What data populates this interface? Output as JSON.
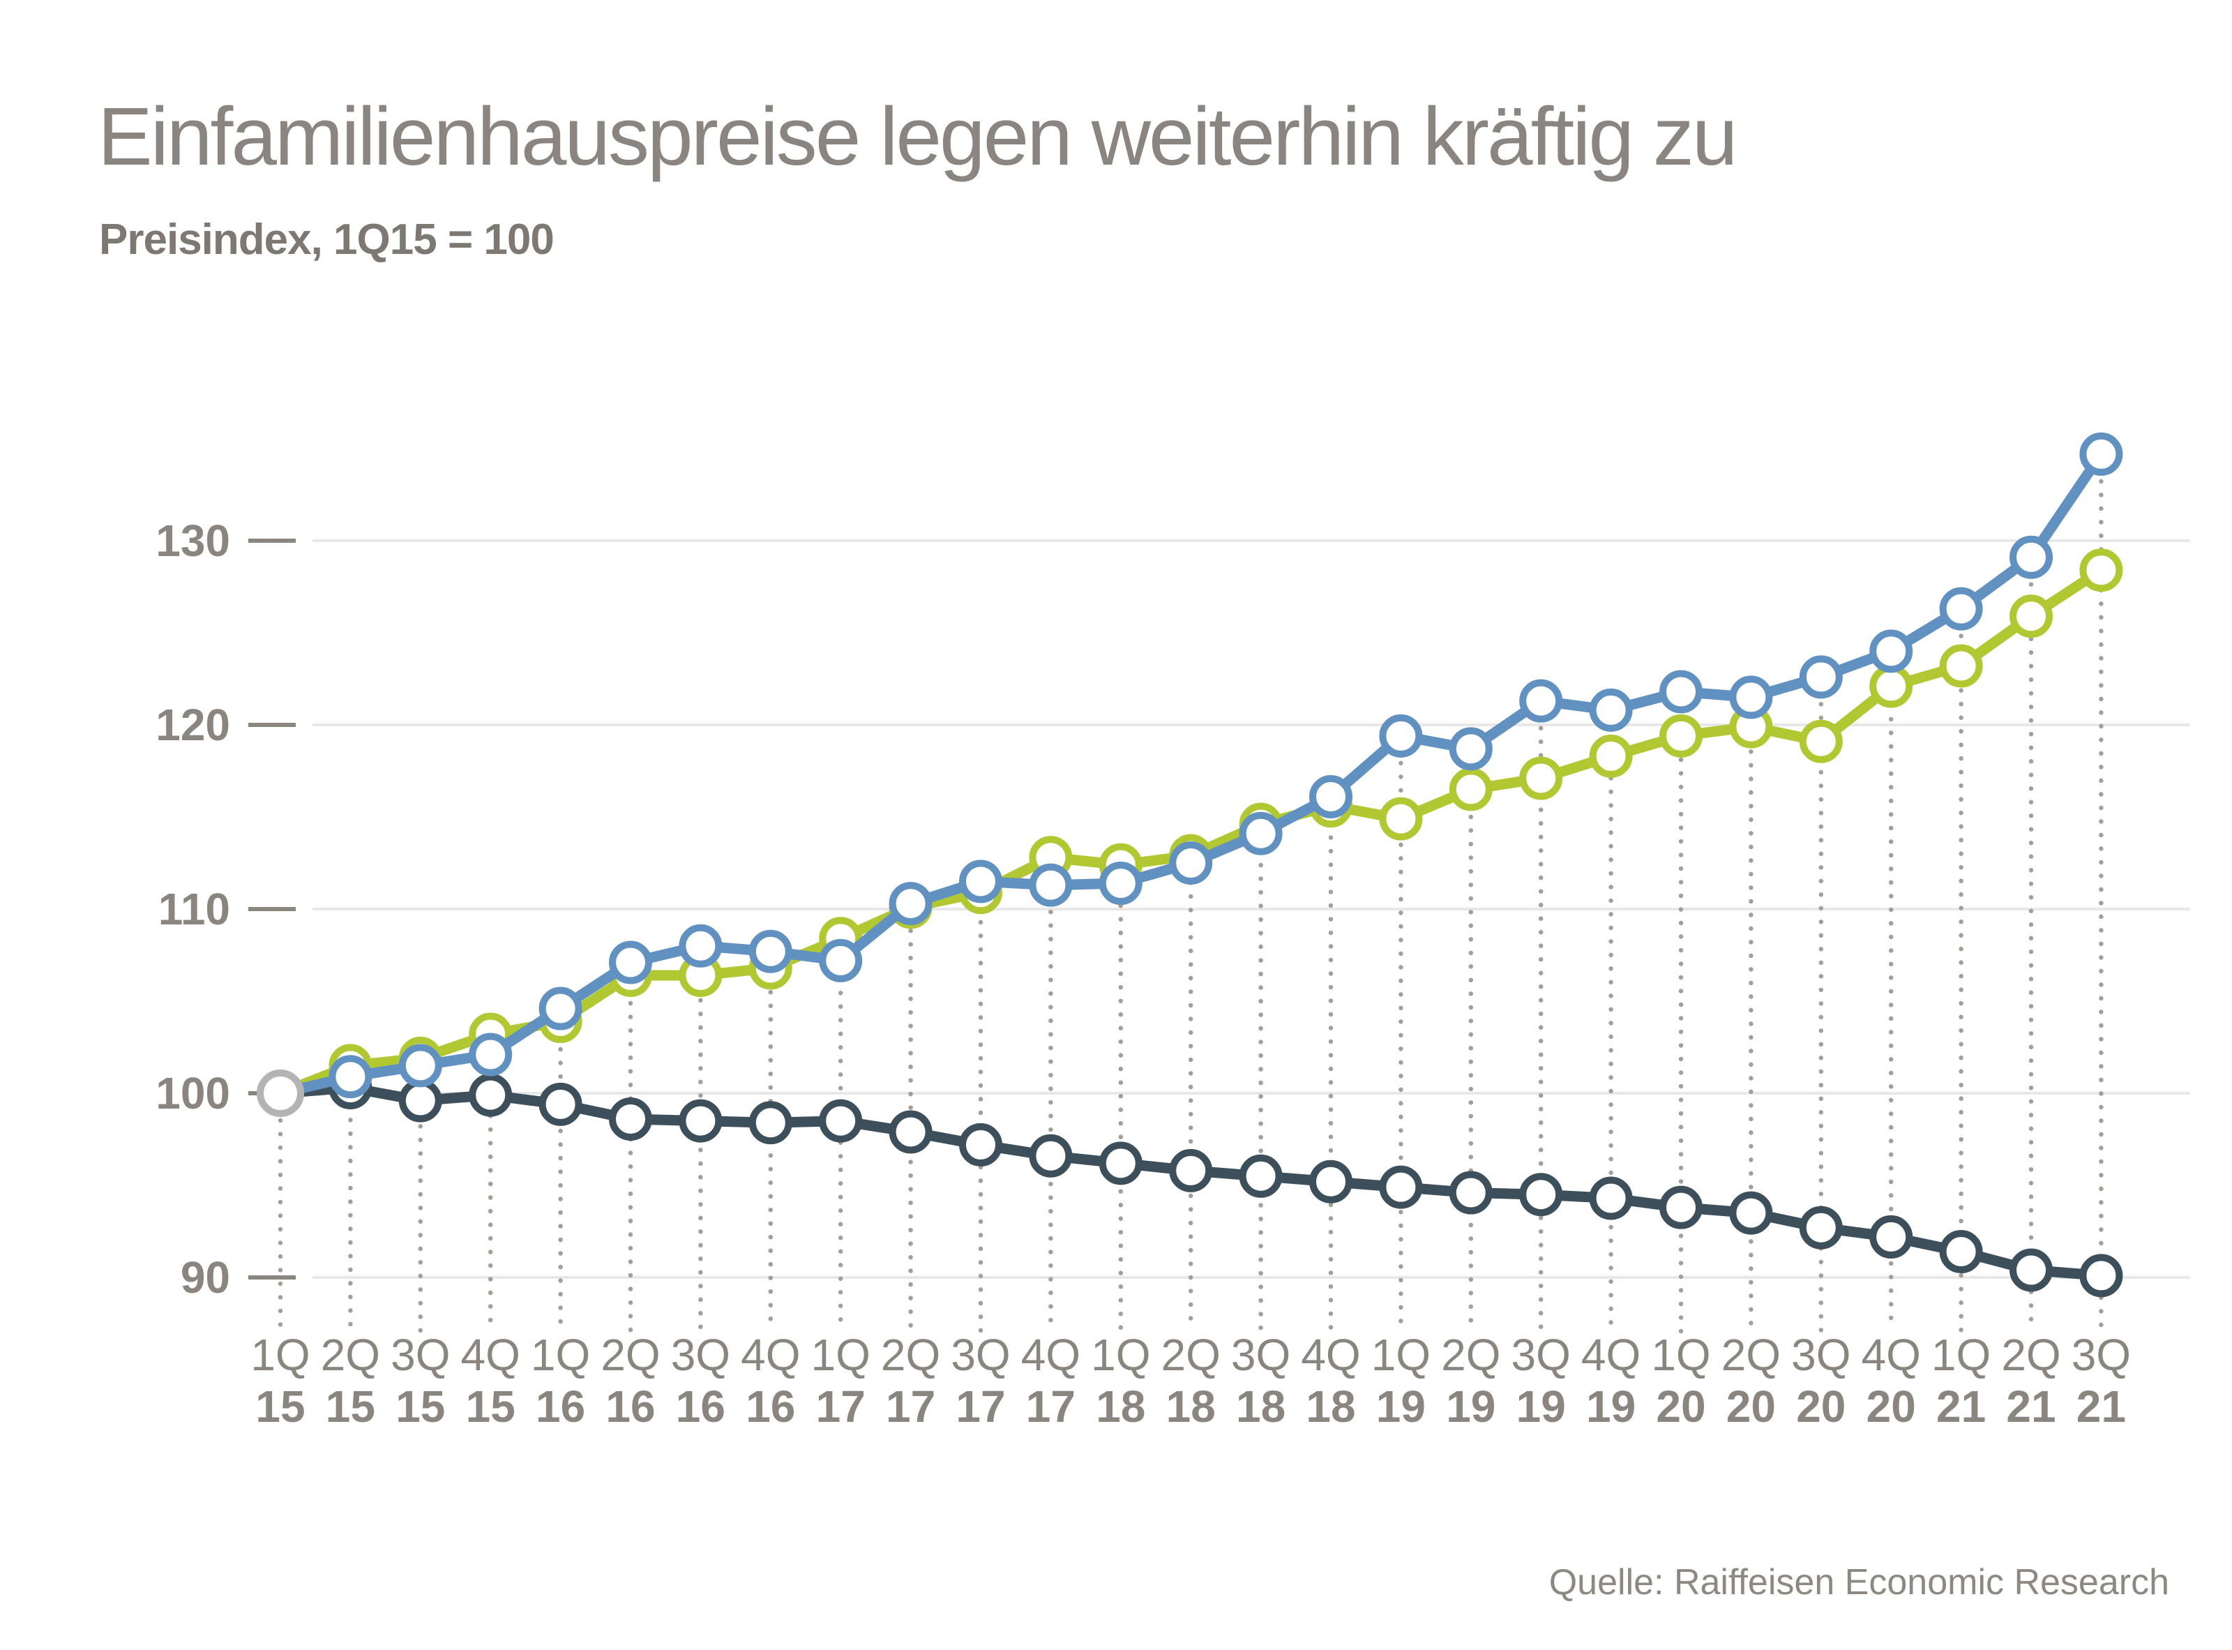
{
  "header": {
    "title": "Einfamilienhauspreise legen weiterhin kräftig zu",
    "subtitle": "Preisindex, 1Q15 = 100"
  },
  "footer": {
    "source": "Quelle: Raiffeisen Economic Research"
  },
  "colors": {
    "blue": "#6191c1",
    "green": "#b2c832",
    "dark": "#3d4f5a",
    "start_marker": "#b4b4b4",
    "grid_line": "#e8e8e8",
    "dot_guide": "#a49e98",
    "axis_text": "#8a857f"
  },
  "chart_data": {
    "type": "line",
    "title": "Einfamilienhauspreise legen weiterhin kräftig zu",
    "subtitle": "Preisindex, 1Q15 = 100",
    "legend_position": "none",
    "grid": "horizontal",
    "ylim": [
      88,
      136
    ],
    "y_ticks": [
      90,
      100,
      110,
      120,
      130
    ],
    "x_labels": [
      {
        "q": "1Q",
        "y": "15"
      },
      {
        "q": "2Q",
        "y": "15"
      },
      {
        "q": "3Q",
        "y": "15"
      },
      {
        "q": "4Q",
        "y": "15"
      },
      {
        "q": "1Q",
        "y": "16"
      },
      {
        "q": "2Q",
        "y": "16"
      },
      {
        "q": "3Q",
        "y": "16"
      },
      {
        "q": "4Q",
        "y": "16"
      },
      {
        "q": "1Q",
        "y": "17"
      },
      {
        "q": "2Q",
        "y": "17"
      },
      {
        "q": "3Q",
        "y": "17"
      },
      {
        "q": "4Q",
        "y": "17"
      },
      {
        "q": "1Q",
        "y": "18"
      },
      {
        "q": "2Q",
        "y": "18"
      },
      {
        "q": "3Q",
        "y": "18"
      },
      {
        "q": "4Q",
        "y": "18"
      },
      {
        "q": "1Q",
        "y": "19"
      },
      {
        "q": "2Q",
        "y": "19"
      },
      {
        "q": "3Q",
        "y": "19"
      },
      {
        "q": "4Q",
        "y": "19"
      },
      {
        "q": "1Q",
        "y": "20"
      },
      {
        "q": "2Q",
        "y": "20"
      },
      {
        "q": "3Q",
        "y": "20"
      },
      {
        "q": "4Q",
        "y": "20"
      },
      {
        "q": "1Q",
        "y": "21"
      },
      {
        "q": "2Q",
        "y": "21"
      },
      {
        "q": "3Q",
        "y": "21"
      }
    ],
    "series": [
      {
        "name": "blue-line",
        "color_key": "blue",
        "values": [
          100,
          100.9,
          101.5,
          102.1,
          104.6,
          107.1,
          108.0,
          107.7,
          107.2,
          110.3,
          111.5,
          111.3,
          111.4,
          112.5,
          114.1,
          116.1,
          119.4,
          118.7,
          121.3,
          120.8,
          121.8,
          121.5,
          122.6,
          124.0,
          126.3,
          129.1,
          134.7
        ]
      },
      {
        "name": "green-line",
        "color_key": "green",
        "values": [
          100,
          101.5,
          101.9,
          103.2,
          103.9,
          106.4,
          106.4,
          106.8,
          108.4,
          110.1,
          110.9,
          112.8,
          112.4,
          112.9,
          114.6,
          115.6,
          114.9,
          116.5,
          117.1,
          118.3,
          119.4,
          119.9,
          119.1,
          122.1,
          123.2,
          125.9,
          128.4
        ]
      },
      {
        "name": "dark-line",
        "color_key": "dark",
        "values": [
          100,
          100.3,
          99.6,
          99.9,
          99.4,
          98.6,
          98.5,
          98.4,
          98.5,
          97.9,
          97.2,
          96.6,
          96.2,
          95.8,
          95.5,
          95.2,
          94.9,
          94.6,
          94.5,
          94.3,
          93.8,
          93.5,
          92.7,
          92.2,
          91.4,
          90.4,
          90.1
        ]
      }
    ],
    "start_marker": {
      "x_index": 0,
      "value": 100,
      "color_key": "start_marker"
    }
  }
}
